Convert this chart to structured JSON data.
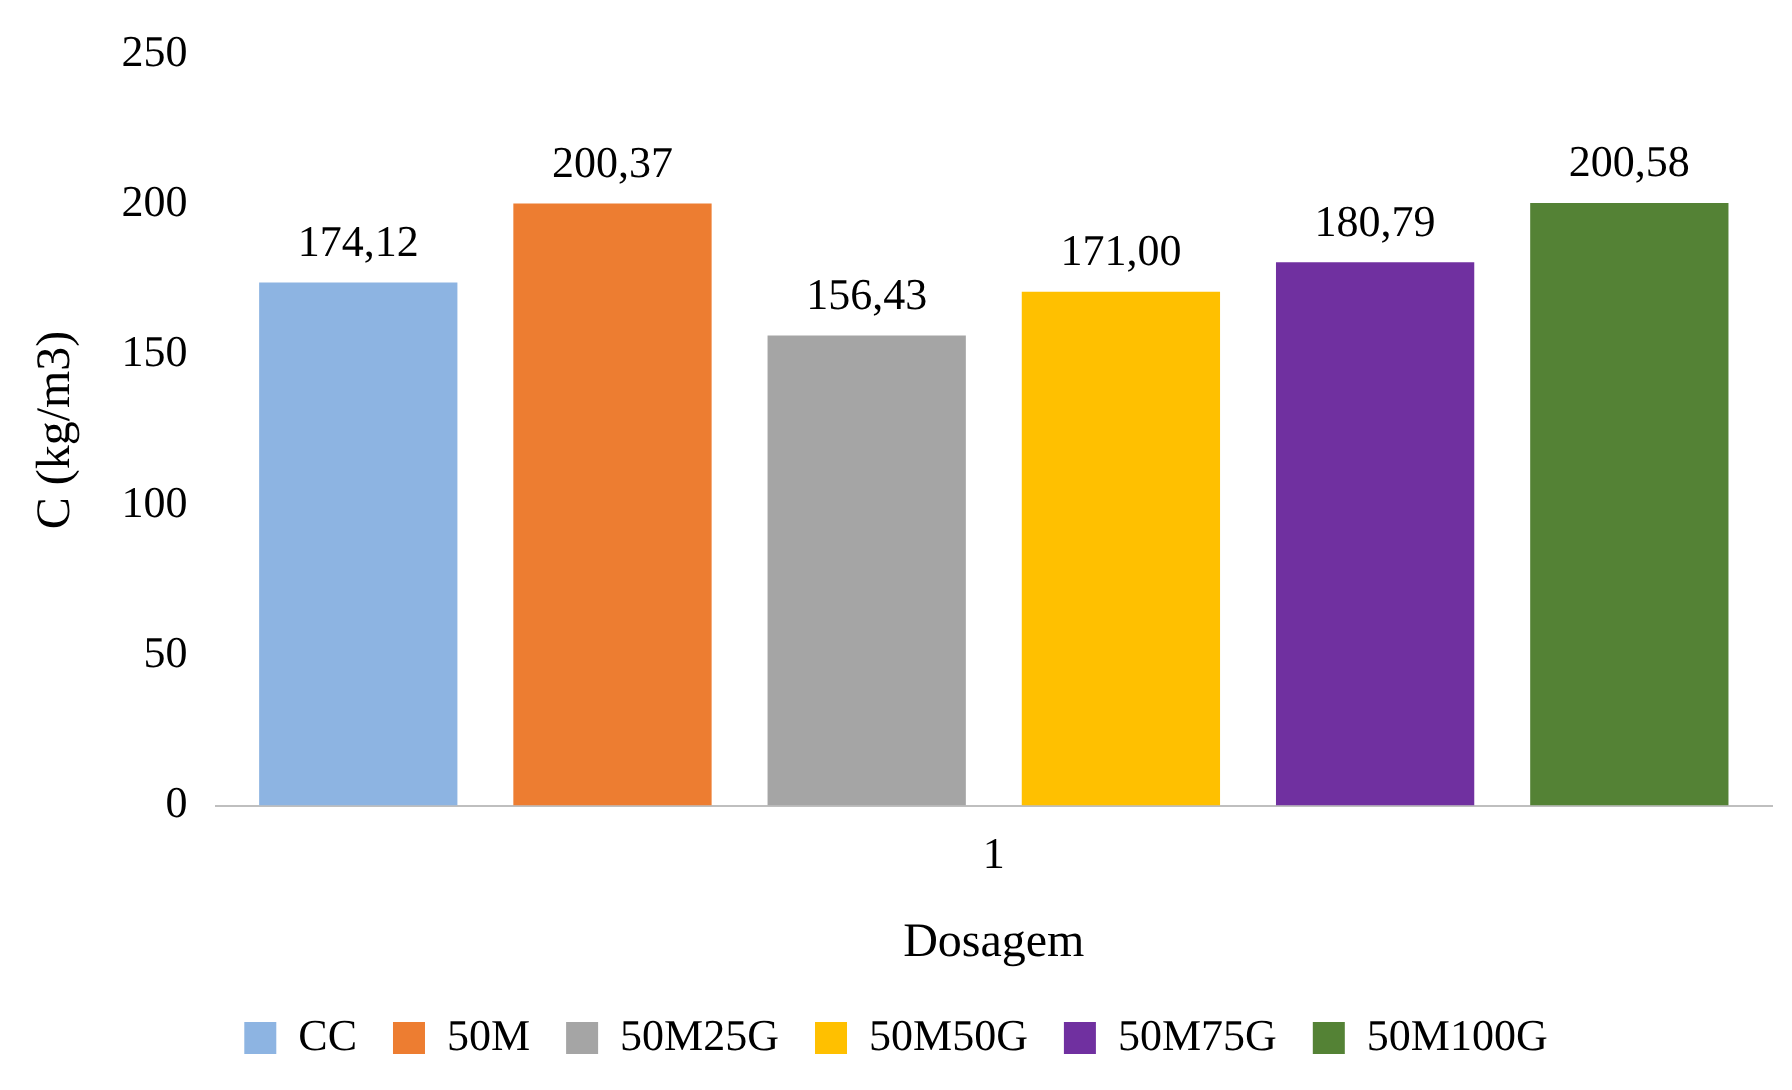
{
  "chart_data": {
    "type": "bar",
    "xlabel": "Dosagem",
    "ylabel": "C (kg/m3)",
    "categories": [
      "1"
    ],
    "series": [
      {
        "name": "CC",
        "color": "#8db4e2",
        "values": [
          174.12
        ],
        "value_labels": [
          "174,12"
        ]
      },
      {
        "name": "50M",
        "color": "#ed7d31",
        "values": [
          200.37
        ],
        "value_labels": [
          "200,37"
        ]
      },
      {
        "name": "50M25G",
        "color": "#a5a5a5",
        "values": [
          156.43
        ],
        "value_labels": [
          "156,43"
        ]
      },
      {
        "name": "50M50G",
        "color": "#ffc000",
        "values": [
          171.0
        ],
        "value_labels": [
          "171,00"
        ]
      },
      {
        "name": "50M75G",
        "color": "#7030a0",
        "values": [
          180.79
        ],
        "value_labels": [
          "180,79"
        ]
      },
      {
        "name": "50M100G",
        "color": "#548235",
        "values": [
          200.58
        ],
        "value_labels": [
          "200,58"
        ]
      }
    ],
    "ylim": [
      0,
      250
    ],
    "yticks": [
      0,
      50,
      100,
      150,
      200,
      250
    ],
    "grid": false,
    "legend": "bottom"
  }
}
